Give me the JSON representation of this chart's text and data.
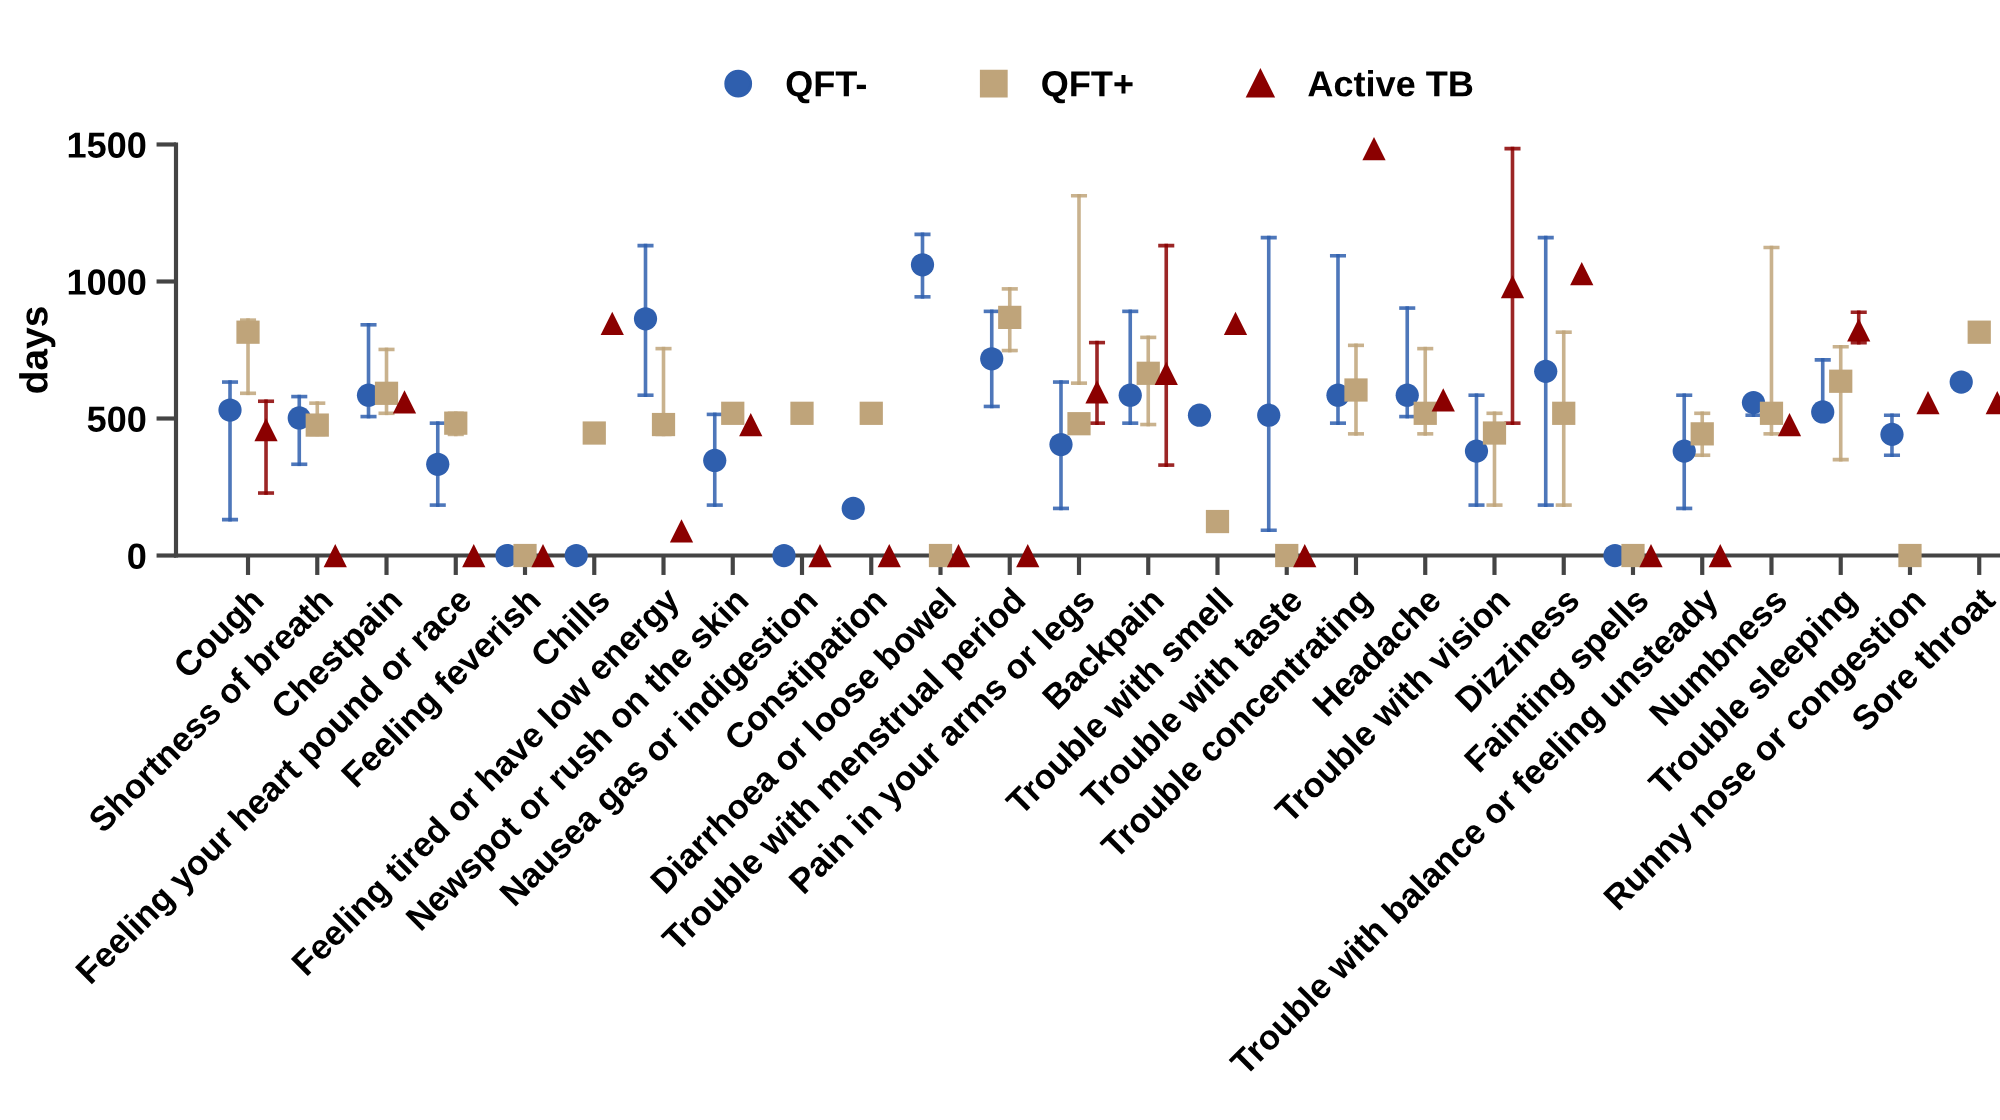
{
  "chart_data": {
    "type": "scatter",
    "ylabel": "days",
    "categories": [
      "Cough",
      "Shortness of breath",
      "Chestpain",
      "Feeling your heart pound or race",
      "Feeling feverish",
      "Chills",
      "Feeling tired or have low energy",
      "Newspot or rush on the skin",
      "Nausea gas or indigestion",
      "Constipation",
      "Diarrhoea or loose bowel",
      "Trouble with menstrual period",
      "Pain in your arms or legs",
      "Backpain",
      "Trouble with smell",
      "Trouble with taste",
      "Trouble concentrating",
      "Headache",
      "Trouble with vision",
      "Dizziness",
      "Fainting spells",
      "Trouble with balance or feeling unsteady",
      "Numbness",
      "Trouble sleeping",
      "Runny nose or congestion",
      "Sore throat"
    ],
    "series": [
      {
        "name": "QFT-",
        "color": "#2f5fae",
        "marker": "circle",
        "values": [
          531,
          502,
          585,
          333,
          0,
          0,
          864,
          347,
          0,
          172,
          1061,
          718,
          405,
          585,
          512,
          512,
          585,
          585,
          381,
          672,
          0,
          381,
          558,
          524,
          442,
          633
        ],
        "errors": [
          [
            131,
            633
          ],
          [
            333,
            580
          ],
          [
            507,
            842
          ],
          [
            184,
            483
          ],
          null,
          null,
          [
            585,
            1131
          ],
          [
            184,
            515
          ],
          null,
          null,
          [
            944,
            1172
          ],
          [
            544,
            891
          ],
          [
            172,
            633
          ],
          [
            483,
            891
          ],
          null,
          [
            92,
            1160
          ],
          [
            483,
            1094
          ],
          [
            507,
            903
          ],
          [
            184,
            585
          ],
          [
            184,
            1160
          ],
          null,
          [
            172,
            585
          ],
          [
            512,
            558
          ],
          [
            500,
            714
          ],
          [
            366,
            512
          ],
          null
        ]
      },
      {
        "name": "QFT+",
        "color": "#bfa47a",
        "marker": "square",
        "values": [
          815,
          476,
          592,
          483,
          0,
          447,
          478,
          519,
          519,
          519,
          0,
          869,
          481,
          665,
          124,
          0,
          604,
          519,
          447,
          519,
          0,
          444,
          519,
          636,
          0,
          815
        ],
        "errors": [
          [
            592,
            859
          ],
          [
            442,
            556
          ],
          [
            519,
            752
          ],
          [
            442,
            519
          ],
          null,
          null,
          [
            442,
            755
          ],
          null,
          null,
          null,
          null,
          [
            748,
            973
          ],
          [
            629,
            1313
          ],
          [
            478,
            796
          ],
          null,
          null,
          [
            444,
            767
          ],
          [
            444,
            755
          ],
          [
            184,
            519
          ],
          [
            184,
            815
          ],
          null,
          [
            366,
            519
          ],
          [
            444,
            1124
          ],
          [
            350,
            762
          ],
          null,
          null
        ]
      },
      {
        "name": "Active TB",
        "color": "#8b0000",
        "marker": "triangle",
        "values": [
          459,
          0,
          561,
          0,
          0,
          847,
          90,
          478,
          0,
          0,
          0,
          0,
          597,
          665,
          847,
          0,
          1485,
          568,
          981,
          1029,
          0,
          0,
          478,
          823,
          558,
          558
        ],
        "errors": [
          [
            228,
            563
          ],
          null,
          null,
          null,
          null,
          null,
          null,
          null,
          null,
          null,
          null,
          null,
          [
            483,
            777
          ],
          [
            330,
            1131
          ],
          null,
          null,
          null,
          null,
          [
            483,
            1485
          ],
          null,
          null,
          null,
          null,
          [
            777,
            888
          ],
          null,
          null
        ]
      }
    ],
    "ylim": [
      0,
      1500
    ],
    "yticks": [
      0,
      500,
      1000,
      1500
    ],
    "grid": false,
    "legend": "top"
  }
}
